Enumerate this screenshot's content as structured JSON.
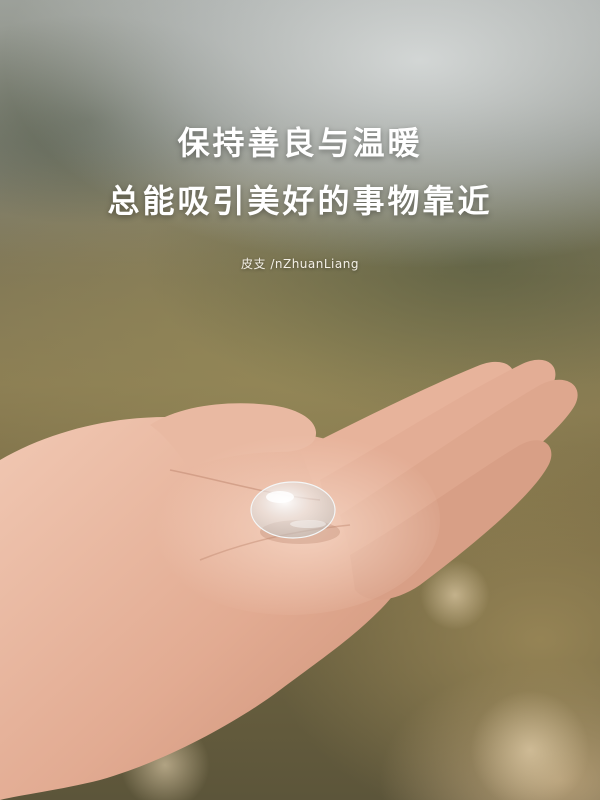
{
  "quote": {
    "line1": "保持善良与温暖",
    "line2": "总能吸引美好的事物靠近"
  },
  "signature": "皮支 /nZhuanLiang",
  "colors": {
    "text": "#ffffff",
    "skin": "#e6b49e",
    "background_grass": "#8a7c53",
    "sky_haze": "#d2d6d6"
  }
}
